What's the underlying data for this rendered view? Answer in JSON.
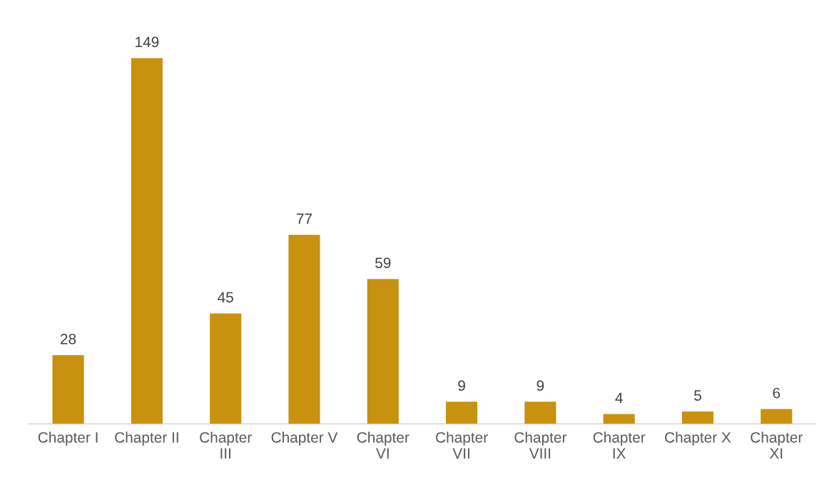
{
  "chart_data": {
    "type": "bar",
    "categories": [
      "Chapter I",
      "Chapter II",
      "Chapter\nIII",
      "Chapter V",
      "Chapter\nVI",
      "Chapter\nVII",
      "Chapter\nVIII",
      "Chapter\nIX",
      "Chapter X",
      "Chapter\nXI"
    ],
    "values": [
      28,
      149,
      45,
      77,
      59,
      9,
      9,
      4,
      5,
      6
    ],
    "color": "#c8910f",
    "data_labels": true,
    "grid": false,
    "legend": false
  }
}
